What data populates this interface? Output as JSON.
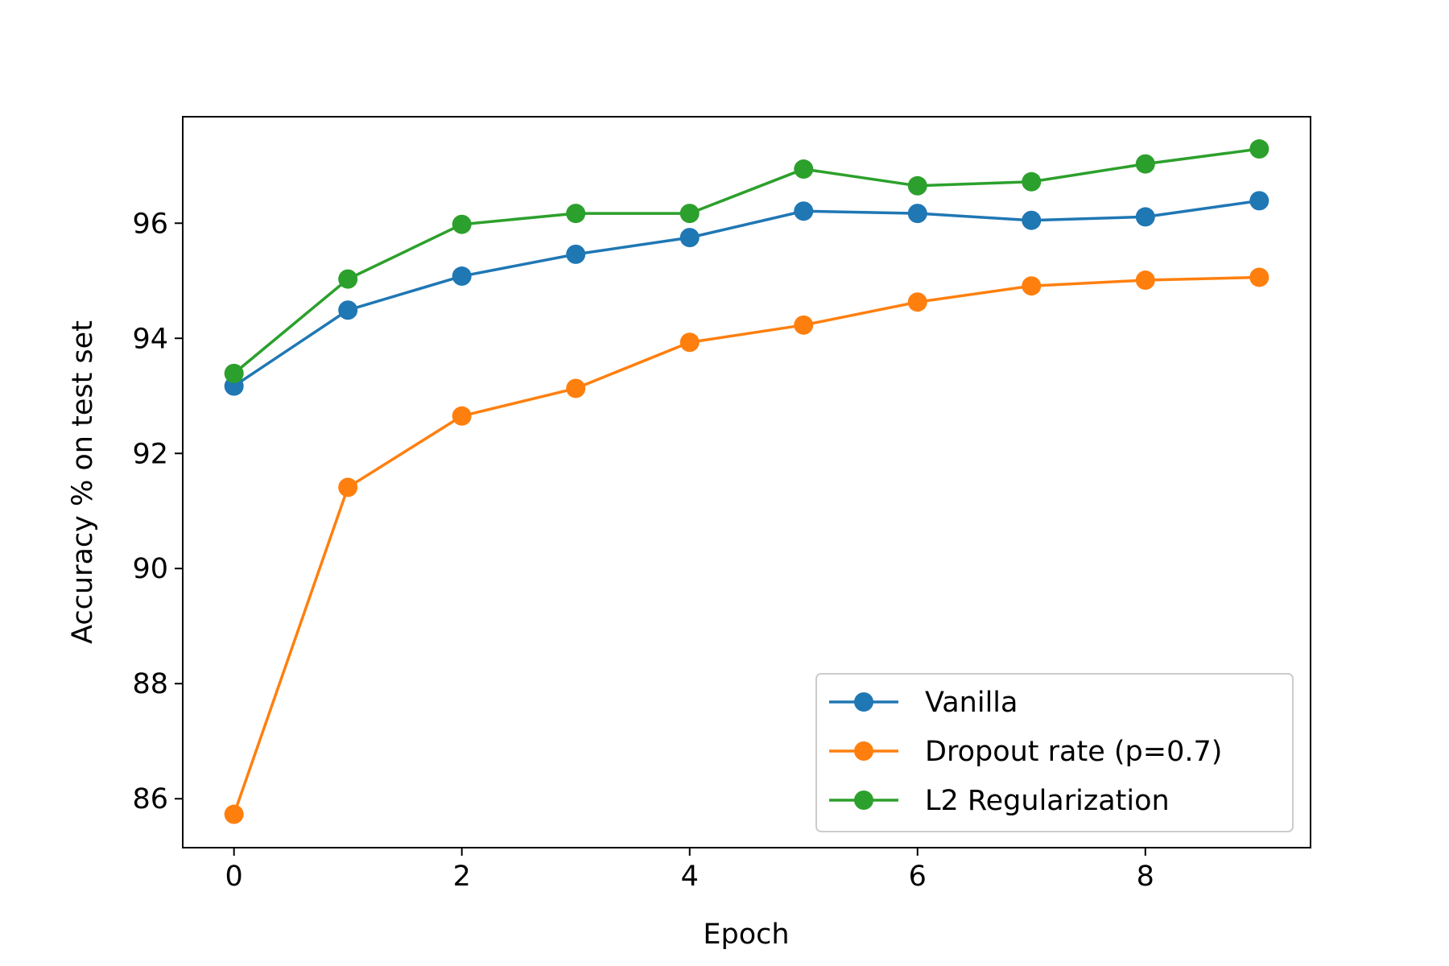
{
  "chart_data": {
    "type": "line",
    "xlabel": "Epoch",
    "ylabel": "Accuracy % on test set",
    "xlim": [
      -0.45,
      9.45
    ],
    "ylim": [
      85.15,
      97.85
    ],
    "xticks": [
      0,
      2,
      4,
      6,
      8
    ],
    "yticks": [
      86,
      88,
      90,
      92,
      94,
      96
    ],
    "x": [
      0,
      1,
      2,
      3,
      4,
      5,
      6,
      7,
      8,
      9
    ],
    "series": [
      {
        "name": "Vanilla",
        "color": "#1f77b4",
        "values": [
          93.17,
          94.49,
          95.08,
          95.46,
          95.75,
          96.21,
          96.17,
          96.05,
          96.11,
          96.39
        ]
      },
      {
        "name": "Dropout rate (p=0.7)",
        "color": "#ff7f0e",
        "values": [
          85.73,
          91.41,
          92.65,
          93.13,
          93.93,
          94.23,
          94.63,
          94.91,
          95.01,
          95.06
        ]
      },
      {
        "name": "L2 Regularization",
        "color": "#2ca02c",
        "values": [
          93.39,
          95.03,
          95.98,
          96.17,
          96.17,
          96.94,
          96.65,
          96.72,
          97.03,
          97.29
        ]
      }
    ],
    "grid": false,
    "legend_position": "lower-right"
  }
}
